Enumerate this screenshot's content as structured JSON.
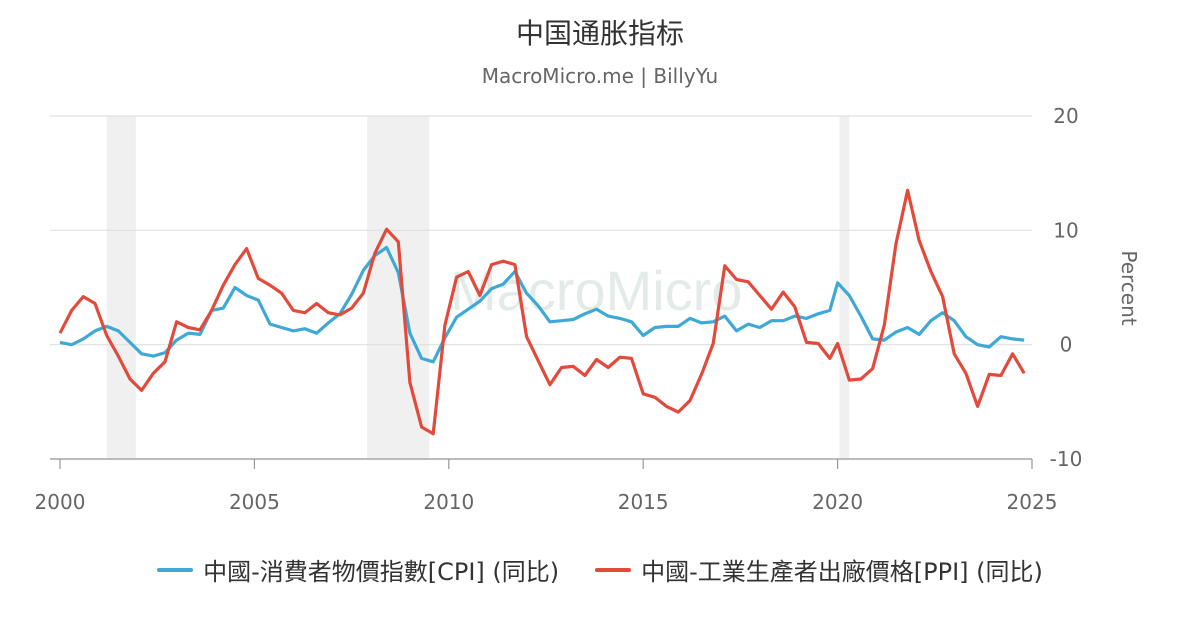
{
  "header": {
    "title": "中国通胀指标",
    "subtitle": "MacroMicro.me | BillyYu"
  },
  "watermark": {
    "text": "MacroMicro"
  },
  "colors": {
    "cpi": "#3ea8d6",
    "ppi": "#e24a3b",
    "recession": "#f0f0f0",
    "grid": "#e0e0e0"
  },
  "chart_data": {
    "type": "line",
    "title": "中国通胀指标",
    "subtitle": "MacroMicro.me | BillyYu",
    "ylabel": "Percent",
    "ylim": [
      -10,
      20
    ],
    "yticks": [
      20,
      10,
      0,
      -10
    ],
    "xlim": [
      2000,
      2025
    ],
    "xticks": [
      2000,
      2005,
      2010,
      2015,
      2020,
      2025
    ],
    "grid": true,
    "legend_position": "bottom",
    "shaded_periods": [
      [
        2001.2,
        2001.95
      ],
      [
        2007.9,
        2009.5
      ],
      [
        2020.05,
        2020.3
      ]
    ],
    "series": [
      {
        "name": "中國-消費者物價指數[CPI] (同比)",
        "color": "#3ea8d6",
        "x": [
          2000,
          2000.3,
          2000.6,
          2000.9,
          2001.2,
          2001.5,
          2001.8,
          2002.1,
          2002.4,
          2002.7,
          2003,
          2003.3,
          2003.6,
          2003.9,
          2004.2,
          2004.5,
          2004.8,
          2005.1,
          2005.4,
          2005.7,
          2006,
          2006.3,
          2006.6,
          2006.9,
          2007.2,
          2007.5,
          2007.8,
          2008.1,
          2008.4,
          2008.7,
          2009,
          2009.3,
          2009.6,
          2009.9,
          2010.2,
          2010.5,
          2010.8,
          2011.1,
          2011.4,
          2011.7,
          2012,
          2012.3,
          2012.6,
          2012.9,
          2013.2,
          2013.5,
          2013.8,
          2014.1,
          2014.4,
          2014.7,
          2015,
          2015.3,
          2015.6,
          2015.9,
          2016.2,
          2016.5,
          2016.8,
          2017.1,
          2017.4,
          2017.7,
          2018,
          2018.3,
          2018.6,
          2018.9,
          2019.2,
          2019.5,
          2019.8,
          2020,
          2020.3,
          2020.6,
          2020.9,
          2021.2,
          2021.5,
          2021.8,
          2022.1,
          2022.4,
          2022.7,
          2023,
          2023.3,
          2023.6,
          2023.9,
          2024.2,
          2024.5,
          2024.8
        ],
        "values": [
          0.2,
          0.0,
          0.5,
          1.2,
          1.6,
          1.2,
          0.2,
          -0.8,
          -1.0,
          -0.7,
          0.4,
          1.0,
          0.9,
          3.0,
          3.2,
          5.0,
          4.3,
          3.9,
          1.8,
          1.5,
          1.2,
          1.4,
          1.0,
          1.9,
          2.7,
          4.4,
          6.5,
          7.8,
          8.5,
          6.3,
          1.0,
          -1.2,
          -1.5,
          0.6,
          2.4,
          3.1,
          3.8,
          4.9,
          5.3,
          6.4,
          4.5,
          3.4,
          2.0,
          2.1,
          2.2,
          2.7,
          3.1,
          2.5,
          2.3,
          2.0,
          0.8,
          1.5,
          1.6,
          1.6,
          2.3,
          1.9,
          2.0,
          2.5,
          1.2,
          1.8,
          1.5,
          2.1,
          2.1,
          2.5,
          2.3,
          2.7,
          3.0,
          5.4,
          4.3,
          2.5,
          0.5,
          0.4,
          1.1,
          1.5,
          0.9,
          2.1,
          2.8,
          2.1,
          0.7,
          0.0,
          -0.2,
          0.7,
          0.5,
          0.4
        ]
      },
      {
        "name": "中國-工業生產者出廠價格[PPI] (同比)",
        "color": "#e24a3b",
        "x": [
          2000,
          2000.3,
          2000.6,
          2000.9,
          2001.2,
          2001.5,
          2001.8,
          2002.1,
          2002.4,
          2002.7,
          2003,
          2003.3,
          2003.6,
          2003.9,
          2004.2,
          2004.5,
          2004.8,
          2005.1,
          2005.4,
          2005.7,
          2006,
          2006.3,
          2006.6,
          2006.9,
          2007.2,
          2007.5,
          2007.8,
          2008.1,
          2008.4,
          2008.7,
          2009,
          2009.3,
          2009.6,
          2009.9,
          2010.2,
          2010.5,
          2010.8,
          2011.1,
          2011.4,
          2011.7,
          2012,
          2012.3,
          2012.6,
          2012.9,
          2013.2,
          2013.5,
          2013.8,
          2014.1,
          2014.4,
          2014.7,
          2015,
          2015.3,
          2015.6,
          2015.9,
          2016.2,
          2016.5,
          2016.8,
          2017.1,
          2017.4,
          2017.7,
          2018,
          2018.3,
          2018.6,
          2018.9,
          2019.2,
          2019.5,
          2019.8,
          2020,
          2020.3,
          2020.6,
          2020.9,
          2021.2,
          2021.5,
          2021.8,
          2022.1,
          2022.4,
          2022.7,
          2023,
          2023.3,
          2023.6,
          2023.9,
          2024.2,
          2024.5,
          2024.8
        ],
        "values": [
          1.0,
          3.0,
          4.2,
          3.6,
          0.8,
          -1.0,
          -3.0,
          -4.0,
          -2.5,
          -1.5,
          2.0,
          1.5,
          1.3,
          3.0,
          5.2,
          7.0,
          8.4,
          5.8,
          5.2,
          4.5,
          3.0,
          2.8,
          3.6,
          2.8,
          2.6,
          3.2,
          4.5,
          8.0,
          10.1,
          9.0,
          -3.3,
          -7.2,
          -7.8,
          1.7,
          5.9,
          6.4,
          4.3,
          7.0,
          7.3,
          7.0,
          0.7,
          -1.4,
          -3.5,
          -2.0,
          -1.9,
          -2.7,
          -1.3,
          -2.0,
          -1.1,
          -1.2,
          -4.3,
          -4.6,
          -5.4,
          -5.9,
          -4.9,
          -2.6,
          0.1,
          6.9,
          5.7,
          5.5,
          4.3,
          3.1,
          4.6,
          3.3,
          0.2,
          0.1,
          -1.2,
          0.1,
          -3.1,
          -3.0,
          -2.1,
          1.7,
          8.8,
          13.5,
          9.1,
          6.4,
          4.2,
          -0.8,
          -2.5,
          -5.4,
          -2.6,
          -2.7,
          -0.8,
          -2.5
        ]
      }
    ]
  }
}
